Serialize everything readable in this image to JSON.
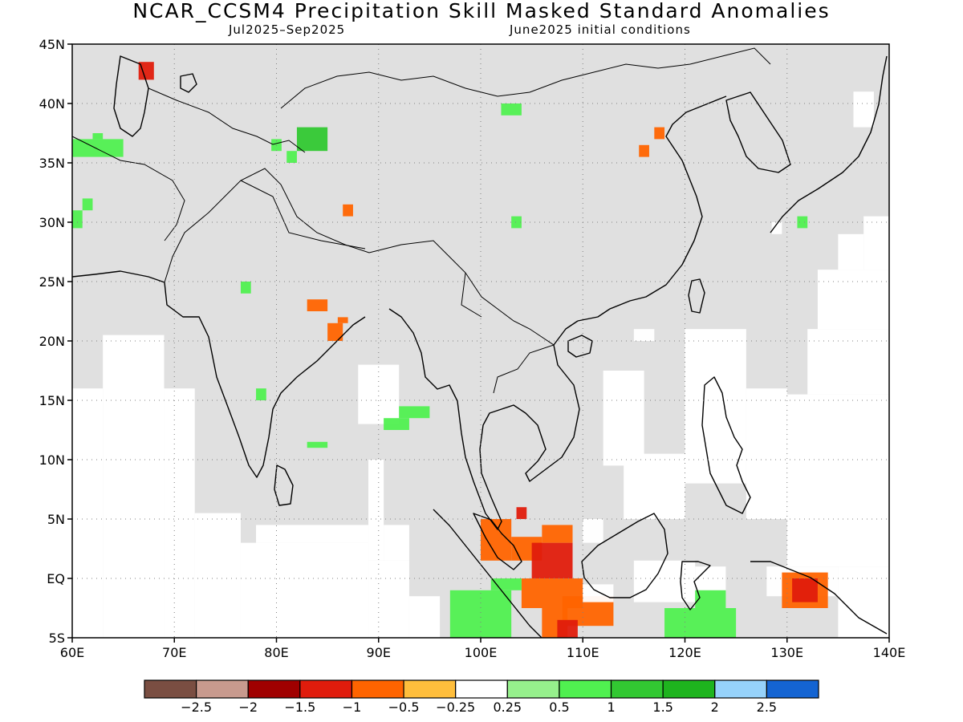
{
  "title": "NCAR_CCSM4 Precipitation Skill Masked Standard Anomalies",
  "subtitle_left": "Jul2025–Sep2025",
  "subtitle_right": "June2025 initial conditions",
  "map": {
    "lon_range": [
      60,
      140
    ],
    "lat_range": [
      -5,
      45
    ],
    "lon_ticks": [
      {
        "value": 60,
        "label": "60E"
      },
      {
        "value": 70,
        "label": "70E"
      },
      {
        "value": 80,
        "label": "80E"
      },
      {
        "value": 90,
        "label": "90E"
      },
      {
        "value": 100,
        "label": "100E"
      },
      {
        "value": 110,
        "label": "110E"
      },
      {
        "value": 120,
        "label": "120E"
      },
      {
        "value": 130,
        "label": "130E"
      },
      {
        "value": 140,
        "label": "140E"
      }
    ],
    "lat_ticks": [
      {
        "value": 45,
        "label": "45N"
      },
      {
        "value": 40,
        "label": "40N"
      },
      {
        "value": 35,
        "label": "35N"
      },
      {
        "value": 30,
        "label": "30N"
      },
      {
        "value": 25,
        "label": "25N"
      },
      {
        "value": 20,
        "label": "20N"
      },
      {
        "value": 15,
        "label": "15N"
      },
      {
        "value": 10,
        "label": "10N"
      },
      {
        "value": 5,
        "label": "5N"
      },
      {
        "value": 0,
        "label": "EQ"
      },
      {
        "value": -5,
        "label": "5S"
      }
    ],
    "grid": "dotted",
    "mask_color": "#e0e0e0",
    "unmasked_regions": [
      {
        "lon": [
          60,
          63
        ],
        "lat": [
          -5,
          16
        ]
      },
      {
        "lon": [
          63,
          69
        ],
        "lat": [
          -5,
          20.5
        ]
      },
      {
        "lon": [
          69,
          72
        ],
        "lat": [
          -5,
          16
        ]
      },
      {
        "lon": [
          72,
          76.5
        ],
        "lat": [
          -5,
          5.5
        ]
      },
      {
        "lon": [
          76.5,
          89
        ],
        "lat": [
          -5,
          3
        ]
      },
      {
        "lon": [
          89,
          93
        ],
        "lat": [
          -5,
          1.5
        ]
      },
      {
        "lon": [
          93,
          96
        ],
        "lat": [
          -5,
          -1.5
        ]
      },
      {
        "lon": [
          78,
          89
        ],
        "lat": [
          3,
          4.5
        ]
      },
      {
        "lon": [
          89,
          90.5
        ],
        "lat": [
          1.5,
          10
        ]
      },
      {
        "lon": [
          90.5,
          93
        ],
        "lat": [
          1.5,
          4.5
        ]
      },
      {
        "lon": [
          88,
          92
        ],
        "lat": [
          13,
          18
        ]
      },
      {
        "lon": [
          112,
          116
        ],
        "lat": [
          9.5,
          17.5
        ]
      },
      {
        "lon": [
          114,
          120
        ],
        "lat": [
          5,
          10.5
        ]
      },
      {
        "lon": [
          120,
          126
        ],
        "lat": [
          8,
          21
        ]
      },
      {
        "lon": [
          126,
          130
        ],
        "lat": [
          5,
          16
        ]
      },
      {
        "lon": [
          130,
          140
        ],
        "lat": [
          1,
          15.5
        ]
      },
      {
        "lon": [
          132,
          140
        ],
        "lat": [
          15.5,
          21
        ]
      },
      {
        "lon": [
          133,
          140
        ],
        "lat": [
          21,
          26
        ]
      },
      {
        "lon": [
          137.5,
          140
        ],
        "lat": [
          26,
          30.5
        ]
      },
      {
        "lon": [
          135,
          137.5
        ],
        "lat": [
          26,
          29
        ]
      },
      {
        "lon": [
          135,
          140
        ],
        "lat": [
          -5,
          1
        ]
      },
      {
        "lon": [
          136.5,
          138.5
        ],
        "lat": [
          38,
          41
        ]
      },
      {
        "lon": [
          115,
          121
        ],
        "lat": [
          -2,
          1.5
        ]
      },
      {
        "lon": [
          121,
          124
        ],
        "lat": [
          -1,
          1
        ]
      }
    ],
    "anomaly_patches": [
      {
        "lon": [
          66.5,
          68
        ],
        "lat": [
          42,
          43.5
        ],
        "value": -1.25
      },
      {
        "lon": [
          60,
          65
        ],
        "lat": [
          35.5,
          37
        ],
        "value": 0.75
      },
      {
        "lon": [
          62,
          63
        ],
        "lat": [
          37,
          37.5
        ],
        "value": 0.75
      },
      {
        "lon": [
          60,
          61
        ],
        "lat": [
          29.5,
          31
        ],
        "value": 0.75
      },
      {
        "lon": [
          61,
          62
        ],
        "lat": [
          31,
          32
        ],
        "value": 0.75
      },
      {
        "lon": [
          82,
          85
        ],
        "lat": [
          36,
          38
        ],
        "value": 1.25
      },
      {
        "lon": [
          81,
          82
        ],
        "lat": [
          35,
          36
        ],
        "value": 0.75
      },
      {
        "lon": [
          79.5,
          80.5
        ],
        "lat": [
          36,
          37
        ],
        "value": 0.75
      },
      {
        "lon": [
          102,
          104
        ],
        "lat": [
          39,
          40
        ],
        "value": 0.5
      },
      {
        "lon": [
          117,
          118
        ],
        "lat": [
          37,
          38
        ],
        "value": -0.75
      },
      {
        "lon": [
          115.5,
          116.5
        ],
        "lat": [
          35.5,
          36.5
        ],
        "value": -0.75
      },
      {
        "lon": [
          86.5,
          87.5
        ],
        "lat": [
          30.5,
          31.5
        ],
        "value": -0.75
      },
      {
        "lon": [
          103,
          104
        ],
        "lat": [
          29.5,
          30.5
        ],
        "value": 0.75
      },
      {
        "lon": [
          131,
          132
        ],
        "lat": [
          29.5,
          30.5
        ],
        "value": 0.75
      },
      {
        "lon": [
          128.5,
          129.5
        ],
        "lat": [
          29,
          30
        ],
        "value": -0.25
      },
      {
        "lon": [
          76.5,
          77.5
        ],
        "lat": [
          24,
          25
        ],
        "value": 0.75
      },
      {
        "lon": [
          83,
          85
        ],
        "lat": [
          22.5,
          23.5
        ],
        "value": -0.75
      },
      {
        "lon": [
          85,
          86.5
        ],
        "lat": [
          20,
          21.5
        ],
        "value": -0.75
      },
      {
        "lon": [
          86,
          87
        ],
        "lat": [
          21.5,
          22
        ],
        "value": -0.75
      },
      {
        "lon": [
          115,
          117
        ],
        "lat": [
          20,
          21
        ],
        "value": -0.25
      },
      {
        "lon": [
          78,
          79
        ],
        "lat": [
          15,
          16
        ],
        "value": 0.75
      },
      {
        "lon": [
          90.5,
          93
        ],
        "lat": [
          12.5,
          13.5
        ],
        "value": 0.75
      },
      {
        "lon": [
          92,
          95
        ],
        "lat": [
          13.5,
          14.5
        ],
        "value": 0.5
      },
      {
        "lon": [
          83,
          85
        ],
        "lat": [
          11,
          11.5
        ],
        "value": 0.75
      },
      {
        "lon": [
          100,
          103
        ],
        "lat": [
          1.5,
          5
        ],
        "value": -0.75
      },
      {
        "lon": [
          103,
          106
        ],
        "lat": [
          1.5,
          3.5
        ],
        "value": -0.75
      },
      {
        "lon": [
          105,
          109
        ],
        "lat": [
          0,
          3
        ],
        "value": -1.25
      },
      {
        "lon": [
          104,
          110
        ],
        "lat": [
          -2.5,
          0
        ],
        "value": -0.75
      },
      {
        "lon": [
          106,
          109
        ],
        "lat": [
          3,
          4.5
        ],
        "value": -0.75
      },
      {
        "lon": [
          110,
          112
        ],
        "lat": [
          3,
          5
        ],
        "value": -0.25
      },
      {
        "lon": [
          108,
          113
        ],
        "lat": [
          -4,
          -1.5
        ],
        "value": -0.75
      },
      {
        "lon": [
          110,
          113
        ],
        "lat": [
          -2,
          -0.5
        ],
        "value": -0.25
      },
      {
        "lon": [
          106,
          108.5
        ],
        "lat": [
          -5,
          -2.5
        ],
        "value": -0.75
      },
      {
        "lon": [
          107.5,
          109.5
        ],
        "lat": [
          -5,
          -3.5
        ],
        "value": -1.25
      },
      {
        "lon": [
          103.5,
          104.5
        ],
        "lat": [
          5,
          6
        ],
        "value": -1.25
      },
      {
        "lon": [
          97,
          103
        ],
        "lat": [
          -5,
          -1
        ],
        "value": 0.75
      },
      {
        "lon": [
          101,
          104
        ],
        "lat": [
          -1,
          0
        ],
        "value": 0.5
      },
      {
        "lon": [
          118,
          125
        ],
        "lat": [
          -5,
          -2.5
        ],
        "value": 0.75
      },
      {
        "lon": [
          121,
          124
        ],
        "lat": [
          -2.5,
          -1
        ],
        "value": 0.5
      },
      {
        "lon": [
          118,
          120
        ],
        "lat": [
          -2,
          -1
        ],
        "value": -0.25
      },
      {
        "lon": [
          128,
          135
        ],
        "lat": [
          -1.5,
          1
        ],
        "value": -0.25
      },
      {
        "lon": [
          129.5,
          134
        ],
        "lat": [
          -2.5,
          0.5
        ],
        "value": -0.75
      },
      {
        "lon": [
          130.5,
          133
        ],
        "lat": [
          -2,
          0
        ],
        "value": -1.25
      }
    ]
  },
  "colorbar": {
    "colors": [
      "#7a4e42",
      "#c89a8e",
      "#a00000",
      "#e01c0c",
      "#ff6400",
      "#ffbe3c",
      "#ffffff",
      "#96f08c",
      "#50f050",
      "#32c832",
      "#1eb41e",
      "#96d2fa",
      "#1464d2"
    ],
    "labels": [
      "−2.5",
      "−2",
      "−1.5",
      "−1",
      "−0.5",
      "−0.25",
      "0.25",
      "0.5",
      "1",
      "1.5",
      "2",
      "2.5"
    ]
  }
}
